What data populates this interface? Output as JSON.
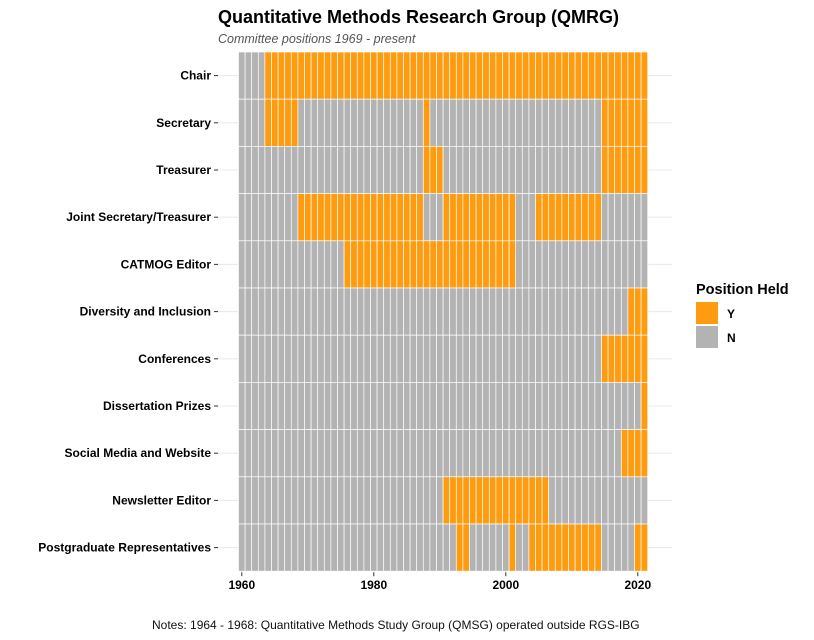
{
  "chart_data": {
    "type": "heatmap",
    "title": "Quantitative Methods Research Group (QMRG)",
    "subtitle": "Committee positions 1969 - present",
    "caption": "Notes: 1964 - 1968: Quantitative Methods Study Group (QMSG) operated outside RGS-IBG",
    "x_range": [
      1960,
      2021
    ],
    "x_ticks": [
      1960,
      1980,
      2000,
      2020
    ],
    "legend": {
      "title": "Position Held",
      "placement": "right",
      "entries": [
        {
          "label": "Y",
          "color": "#ff9b0f"
        },
        {
          "label": "N",
          "color": "#b3b3b3"
        }
      ]
    },
    "rows": [
      {
        "label": "Chair",
        "held": [
          [
            1964,
            2021
          ]
        ]
      },
      {
        "label": "Secretary",
        "held": [
          [
            1964,
            1968
          ],
          [
            1988,
            1988
          ],
          [
            2015,
            2021
          ]
        ]
      },
      {
        "label": "Treasurer",
        "held": [
          [
            1988,
            1990
          ],
          [
            2015,
            2021
          ]
        ]
      },
      {
        "label": "Joint Secretary/Treasurer",
        "held": [
          [
            1969,
            1987
          ],
          [
            1991,
            2001
          ],
          [
            2005,
            2014
          ]
        ]
      },
      {
        "label": "CATMOG Editor",
        "held": [
          [
            1976,
            2001
          ]
        ]
      },
      {
        "label": "Diversity and Inclusion",
        "held": [
          [
            2019,
            2021
          ]
        ]
      },
      {
        "label": "Conferences",
        "held": [
          [
            2015,
            2021
          ]
        ]
      },
      {
        "label": "Dissertation Prizes",
        "held": [
          [
            2021,
            2021
          ]
        ]
      },
      {
        "label": "Social Media and Website",
        "held": [
          [
            2018,
            2021
          ]
        ]
      },
      {
        "label": "Newsletter Editor",
        "held": [
          [
            1991,
            2006
          ]
        ]
      },
      {
        "label": "Postgraduate Representatives",
        "held": [
          [
            1993,
            1994
          ],
          [
            2001,
            2001
          ],
          [
            2004,
            2014
          ],
          [
            2020,
            2021
          ]
        ]
      }
    ]
  }
}
